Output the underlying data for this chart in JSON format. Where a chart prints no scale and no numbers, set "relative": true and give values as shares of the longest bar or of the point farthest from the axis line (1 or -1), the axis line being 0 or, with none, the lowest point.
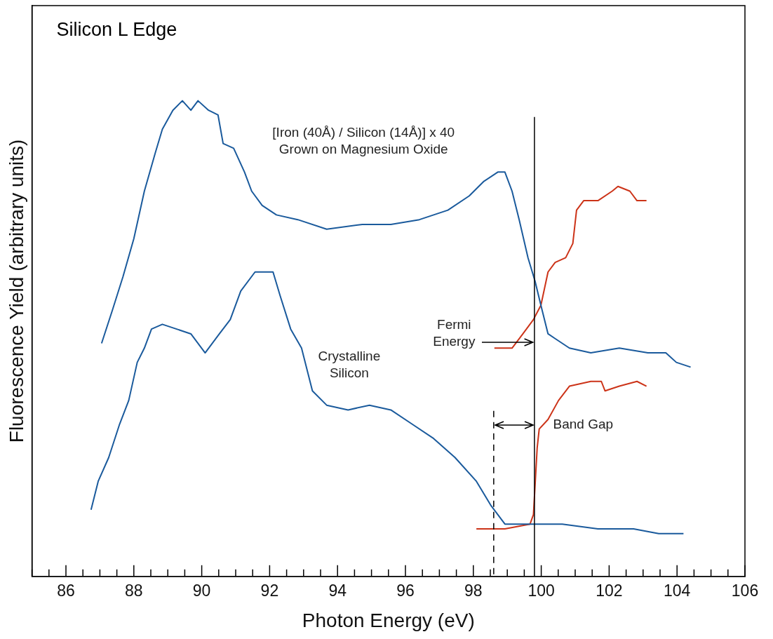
{
  "chart_data": {
    "type": "line",
    "title": "Silicon L Edge",
    "xlabel": "Photon Energy (eV)",
    "ylabel": "Fluorescence Yield (arbitrary units)",
    "relative": true,
    "legend": false,
    "marker": "none",
    "line_style": "solid",
    "xlim": [
      85,
      106
    ],
    "xticks": [
      {
        "value": 85,
        "label": null
      },
      {
        "value": 85.5,
        "label": null
      },
      86,
      {
        "value": 86.5,
        "label": null
      },
      {
        "value": 87,
        "label": null
      },
      {
        "value": 87.5,
        "label": null
      },
      88,
      {
        "value": 88.5,
        "label": null
      },
      {
        "value": 89,
        "label": null
      },
      {
        "value": 89.5,
        "label": null
      },
      90,
      {
        "value": 90.5,
        "label": null
      },
      {
        "value": 91,
        "label": null
      },
      {
        "value": 91.5,
        "label": null
      },
      92,
      {
        "value": 92.5,
        "label": null
      },
      {
        "value": 93,
        "label": null
      },
      {
        "value": 93.5,
        "label": null
      },
      94,
      {
        "value": 94.5,
        "label": null
      },
      {
        "value": 95,
        "label": null
      },
      {
        "value": 95.5,
        "label": null
      },
      96,
      {
        "value": 96.5,
        "label": null
      },
      {
        "value": 97,
        "label": null
      },
      {
        "value": 97.5,
        "label": null
      },
      98,
      {
        "value": 98.5,
        "label": null
      },
      {
        "value": 99,
        "label": null
      },
      {
        "value": 99.5,
        "label": null
      },
      100,
      {
        "value": 100.5,
        "label": null
      },
      {
        "value": 101,
        "label": null
      },
      {
        "value": 101.5,
        "label": null
      },
      102,
      {
        "value": 102.5,
        "label": null
      },
      {
        "value": 103,
        "label": null
      },
      {
        "value": 103.5,
        "label": null
      },
      104,
      {
        "value": 104.5,
        "label": null
      },
      {
        "value": 105,
        "label": null
      },
      {
        "value": 105.5,
        "label": null
      },
      106
    ],
    "series": [
      {
        "color": "#1a5a9c",
        "x": [
          87.05,
          87.37,
          87.68,
          88.0,
          88.31,
          88.63,
          88.84,
          89.15,
          89.43,
          89.68,
          89.89,
          90.2,
          90.48,
          90.63,
          90.94,
          91.26,
          91.47,
          91.78,
          92.2,
          92.83,
          93.68,
          94.73,
          95.57,
          96.41,
          97.25,
          97.88,
          98.3,
          98.72,
          98.93,
          99.14,
          99.35,
          99.61,
          99.82,
          99.99,
          100.2,
          100.41,
          100.83,
          101.46,
          102.3,
          103.14,
          103.67,
          103.98,
          104.4
        ],
        "values": [
          0.49,
          0.56,
          0.63,
          0.71,
          0.81,
          0.89,
          0.94,
          0.98,
          1.0,
          0.98,
          1.0,
          0.98,
          0.97,
          0.91,
          0.9,
          0.85,
          0.81,
          0.78,
          0.76,
          0.75,
          0.73,
          0.74,
          0.74,
          0.75,
          0.77,
          0.8,
          0.83,
          0.85,
          0.85,
          0.81,
          0.75,
          0.67,
          0.62,
          0.57,
          0.51,
          0.5,
          0.48,
          0.47,
          0.48,
          0.47,
          0.47,
          0.45,
          0.44
        ]
      },
      {
        "color": "#cc3318",
        "x": [
          98.62,
          99.14,
          99.46,
          99.77,
          99.99,
          100.2,
          100.41,
          100.72,
          100.93,
          101.04,
          101.25,
          101.67,
          102.09,
          102.26,
          102.61,
          102.82,
          103.1
        ],
        "values": [
          0.48,
          0.48,
          0.51,
          0.54,
          0.57,
          0.64,
          0.66,
          0.67,
          0.7,
          0.77,
          0.79,
          0.79,
          0.81,
          0.82,
          0.81,
          0.79,
          0.79
        ]
      },
      {
        "color": "#1a5a9c",
        "x": [
          86.74,
          86.95,
          87.26,
          87.58,
          87.85,
          88.1,
          88.31,
          88.52,
          88.84,
          89.26,
          89.68,
          90.1,
          90.52,
          90.84,
          91.15,
          91.57,
          92.1,
          92.31,
          92.62,
          92.94,
          93.26,
          93.68,
          94.31,
          94.94,
          95.57,
          96.2,
          96.83,
          97.46,
          98.09,
          98.51,
          98.93,
          99.56,
          100.62,
          101.67,
          102.72,
          103.46,
          104.19
        ],
        "values": [
          0.14,
          0.2,
          0.25,
          0.32,
          0.37,
          0.45,
          0.48,
          0.52,
          0.53,
          0.52,
          0.51,
          0.47,
          0.51,
          0.54,
          0.6,
          0.64,
          0.64,
          0.59,
          0.52,
          0.48,
          0.39,
          0.36,
          0.35,
          0.36,
          0.35,
          0.32,
          0.29,
          0.25,
          0.2,
          0.15,
          0.11,
          0.11,
          0.11,
          0.1,
          0.1,
          0.09,
          0.09
        ]
      },
      {
        "color": "#cc3318",
        "x": [
          98.09,
          98.93,
          99.67,
          99.77,
          99.88,
          99.94,
          100.2,
          100.51,
          100.83,
          101.46,
          101.77,
          101.88,
          102.3,
          102.82,
          103.1
        ],
        "values": [
          0.1,
          0.1,
          0.11,
          0.13,
          0.27,
          0.31,
          0.33,
          0.37,
          0.4,
          0.41,
          0.41,
          0.39,
          0.4,
          0.41,
          0.4
        ]
      }
    ],
    "ref_lines": [
      {
        "axis": "x",
        "value": 99.8,
        "color": "#000000",
        "line_style": "solid"
      },
      {
        "axis": "x",
        "value": 98.6,
        "color": "#000000",
        "line_style": "dashed"
      }
    ],
    "annotations": [
      "[Iron (40Å) / Silicon (14Å)] x 40\nGrown on Magnesium Oxide",
      "Crystalline Silicon",
      "Fermi Energy",
      "Band Gap"
    ]
  }
}
